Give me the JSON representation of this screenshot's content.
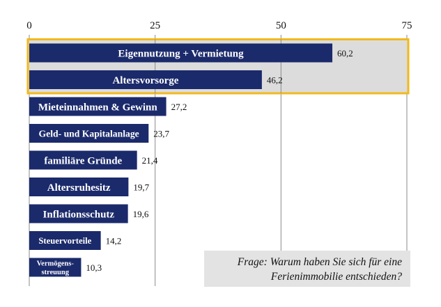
{
  "chart_data": {
    "type": "bar",
    "orientation": "horizontal",
    "title": "",
    "xlabel": "",
    "ylabel": "",
    "xlim": [
      0,
      75
    ],
    "ticks": [
      0,
      25,
      50,
      75
    ],
    "grid": true,
    "categories": [
      "Eigennutzung + Vermietung",
      "Altersvorsorge",
      "Mieteinnahmen & Gewinn",
      "Geld- und Kapitalanlage",
      "familiäre Gründe",
      "Altersruhesitz",
      "Inflationsschutz",
      "Steuervorteile",
      "Vermögens-streuung"
    ],
    "values": [
      60.2,
      46.2,
      27.2,
      23.7,
      21.4,
      19.7,
      19.6,
      14.2,
      10.3
    ],
    "value_labels": [
      "60,2",
      "46,2",
      "27,2",
      "23,7",
      "21,4",
      "19,7",
      "19,6",
      "14,2",
      "10,3"
    ],
    "highlighted_categories": [
      "Eigennutzung + Vermietung",
      "Altersvorsorge"
    ],
    "bar_color": "#1b2a6b",
    "highlight_border_color": "#f2b81c",
    "highlight_fill_color": "#dcdcdc"
  },
  "question_box": {
    "line1": "Frage: Warum haben Sie sich für eine",
    "line2": "Ferienimmobilie entschieden?"
  }
}
